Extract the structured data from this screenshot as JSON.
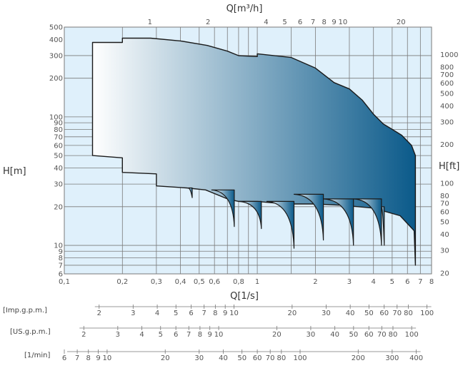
{
  "chart_data": {
    "type": "area",
    "title": "",
    "x_axis": {
      "label": "Q[1/s]",
      "scale": "log",
      "range": [
        0.1,
        8
      ],
      "ticks": [
        {
          "v": 0.1,
          "t": "0,1"
        },
        {
          "v": 0.2,
          "t": "0,2"
        },
        {
          "v": 0.3,
          "t": "0,3"
        },
        {
          "v": 0.4,
          "t": "0,4"
        },
        {
          "v": 0.5,
          "t": "0,5"
        },
        {
          "v": 0.6,
          "t": "0,6"
        },
        {
          "v": 0.8,
          "t": "0,8"
        },
        {
          "v": 1,
          "t": "1"
        },
        {
          "v": 2,
          "t": "2"
        },
        {
          "v": 3,
          "t": "3"
        },
        {
          "v": 4,
          "t": "4"
        },
        {
          "v": 5,
          "t": "5"
        },
        {
          "v": 6,
          "t": "6"
        },
        {
          "v": 7,
          "t": "7"
        },
        {
          "v": 8,
          "t": "8"
        }
      ],
      "gridlines": [
        0.1,
        0.2,
        0.3,
        0.4,
        0.5,
        0.6,
        0.7,
        0.8,
        0.9,
        1,
        1.5,
        2,
        3,
        4,
        5,
        6,
        7,
        8
      ]
    },
    "x_axis_top": {
      "label": "Q[m³/h]",
      "ticks": [
        {
          "v": 1,
          "t": "1"
        },
        {
          "v": 2,
          "t": "2"
        },
        {
          "v": 4,
          "t": "4"
        },
        {
          "v": 5,
          "t": "5"
        },
        {
          "v": 6,
          "t": "6"
        },
        {
          "v": 7,
          "t": "7"
        },
        {
          "v": 8,
          "t": "8"
        },
        {
          "v": 9,
          "t": "9"
        },
        {
          "v": 10,
          "t": "10"
        },
        {
          "v": 20,
          "t": "20"
        }
      ]
    },
    "y_axis": {
      "label": "H[m]",
      "scale": "log",
      "range": [
        6,
        500
      ],
      "ticks": [
        {
          "v": 500,
          "t": "500"
        },
        {
          "v": 400,
          "t": "400"
        },
        {
          "v": 300,
          "t": "300"
        },
        {
          "v": 200,
          "t": "200"
        },
        {
          "v": 100,
          "t": "100"
        },
        {
          "v": 90,
          "t": "90"
        },
        {
          "v": 80,
          "t": "80"
        },
        {
          "v": 70,
          "t": "70"
        },
        {
          "v": 60,
          "t": "60"
        },
        {
          "v": 50,
          "t": "50"
        },
        {
          "v": 40,
          "t": "40"
        },
        {
          "v": 30,
          "t": "30"
        },
        {
          "v": 20,
          "t": "20"
        },
        {
          "v": 10,
          "t": "10"
        },
        {
          "v": 9,
          "t": "9"
        },
        {
          "v": 8,
          "t": "8"
        },
        {
          "v": 7,
          "t": "7"
        },
        {
          "v": 6,
          "t": "6"
        }
      ],
      "gridlines": [
        300,
        200,
        100,
        90,
        80,
        70,
        60,
        50,
        40,
        30,
        20,
        10,
        9,
        8,
        7
      ]
    },
    "y_axis_right": {
      "label": "H[ft]",
      "ticks": [
        {
          "v": 1000,
          "t": "1000"
        },
        {
          "v": 800,
          "t": "800"
        },
        {
          "v": 700,
          "t": "700"
        },
        {
          "v": 600,
          "t": "600"
        },
        {
          "v": 500,
          "t": "500"
        },
        {
          "v": 400,
          "t": "400"
        },
        {
          "v": 300,
          "t": "300"
        },
        {
          "v": 200,
          "t": "200"
        },
        {
          "v": 100,
          "t": "100"
        },
        {
          "v": 80,
          "t": "80"
        },
        {
          "v": 70,
          "t": "70"
        },
        {
          "v": 60,
          "t": "60"
        },
        {
          "v": 50,
          "t": "50"
        },
        {
          "v": 40,
          "t": "40"
        },
        {
          "v": 30,
          "t": "30"
        },
        {
          "v": 20,
          "t": "20"
        }
      ]
    },
    "envelope": {
      "upper": [
        [
          0.14,
          380
        ],
        [
          0.2,
          380
        ],
        [
          0.2,
          410
        ],
        [
          0.28,
          410
        ],
        [
          0.4,
          390
        ],
        [
          0.55,
          360
        ],
        [
          0.7,
          325
        ],
        [
          0.8,
          300
        ],
        [
          1.0,
          295
        ],
        [
          1.0,
          310
        ],
        [
          1.5,
          290
        ],
        [
          2.0,
          240
        ],
        [
          2.5,
          185
        ],
        [
          3.0,
          165
        ],
        [
          3.5,
          135
        ],
        [
          4.0,
          105
        ],
        [
          4.5,
          88
        ],
        [
          5.0,
          80
        ],
        [
          5.6,
          72
        ],
        [
          6.3,
          60
        ],
        [
          6.6,
          50
        ]
      ],
      "right_bottom": 7,
      "lower": [
        [
          0.14,
          50
        ],
        [
          0.2,
          48
        ],
        [
          0.2,
          37
        ],
        [
          0.3,
          36
        ],
        [
          0.3,
          29
        ],
        [
          0.43,
          28
        ],
        [
          0.54,
          27
        ],
        [
          0.7,
          23
        ],
        [
          0.8,
          22
        ],
        [
          1.0,
          22
        ],
        [
          1.4,
          21
        ],
        [
          2.0,
          21
        ],
        [
          2.8,
          20.5
        ],
        [
          4.0,
          19.5
        ],
        [
          5.5,
          17
        ],
        [
          6.5,
          13
        ]
      ],
      "notches": [
        {
          "top": [
            0.44,
            28
          ],
          "bottom": [
            0.46,
            23.5
          ]
        },
        {
          "top": [
            0.58,
            27
          ],
          "bottom": [
            0.76,
            14
          ]
        },
        {
          "top": [
            0.8,
            22
          ],
          "bottom": [
            1.05,
            13.5
          ]
        },
        {
          "top": [
            1.12,
            22
          ],
          "bottom": [
            1.55,
            9.5
          ]
        },
        {
          "top": [
            1.55,
            25
          ],
          "bottom": [
            2.2,
            11
          ]
        },
        {
          "top": [
            2.2,
            23
          ],
          "bottom": [
            3.15,
            10
          ]
        },
        {
          "top": [
            3.15,
            23
          ],
          "bottom": [
            4.4,
            10
          ]
        },
        {
          "top": [
            4.4,
            20
          ],
          "bottom": [
            4.55,
            10
          ]
        }
      ]
    },
    "colors": {
      "background": "#dff0fb",
      "grid": "#7a7a7a",
      "fill_start": "#ffffff",
      "fill_end": "#0b5a8a",
      "outline": "#1a1a1a"
    },
    "secondary_scales": [
      {
        "label": "[Imp.g.p.m.]",
        "ticks": [
          {
            "v": 2,
            "t": "2"
          },
          {
            "v": 3,
            "t": "3"
          },
          {
            "v": 4,
            "t": "4"
          },
          {
            "v": 5,
            "t": "5"
          },
          {
            "v": 6,
            "t": "6"
          },
          {
            "v": 7,
            "t": "7"
          },
          {
            "v": 8,
            "t": "8"
          },
          {
            "v": 9,
            "t": "9"
          },
          {
            "v": 10,
            "t": "10"
          },
          {
            "v": 20,
            "t": "20"
          },
          {
            "v": 30,
            "t": "30"
          },
          {
            "v": 40,
            "t": "40"
          },
          {
            "v": 50,
            "t": "50"
          },
          {
            "v": 60,
            "t": "60"
          },
          {
            "v": 70,
            "t": "70"
          },
          {
            "v": 80,
            "t": "80"
          },
          {
            "v": 100,
            "t": "100"
          }
        ]
      },
      {
        "label": "[US.g.p.m.]",
        "ticks": [
          {
            "v": 2,
            "t": "2"
          },
          {
            "v": 3,
            "t": "3"
          },
          {
            "v": 4,
            "t": "4"
          },
          {
            "v": 5,
            "t": "5"
          },
          {
            "v": 6,
            "t": "6"
          },
          {
            "v": 7,
            "t": "7"
          },
          {
            "v": 8,
            "t": "8"
          },
          {
            "v": 9,
            "t": "9"
          },
          {
            "v": 10,
            "t": "10"
          },
          {
            "v": 20,
            "t": "20"
          },
          {
            "v": 30,
            "t": "30"
          },
          {
            "v": 40,
            "t": "40"
          },
          {
            "v": 50,
            "t": "50"
          },
          {
            "v": 60,
            "t": "60"
          },
          {
            "v": 70,
            "t": "70"
          },
          {
            "v": 80,
            "t": "80"
          },
          {
            "v": 100,
            "t": "100"
          }
        ]
      },
      {
        "label": "[1/min]",
        "ticks": [
          {
            "v": 6,
            "t": "6"
          },
          {
            "v": 7,
            "t": "7"
          },
          {
            "v": 8,
            "t": "8"
          },
          {
            "v": 9,
            "t": "9"
          },
          {
            "v": 10,
            "t": "10"
          },
          {
            "v": 20,
            "t": "20"
          },
          {
            "v": 30,
            "t": "30"
          },
          {
            "v": 40,
            "t": "40"
          },
          {
            "v": 50,
            "t": "50"
          },
          {
            "v": 60,
            "t": "60"
          },
          {
            "v": 70,
            "t": "70"
          },
          {
            "v": 80,
            "t": "80"
          },
          {
            "v": 100,
            "t": "100"
          },
          {
            "v": 200,
            "t": "200"
          },
          {
            "v": 300,
            "t": "300"
          },
          {
            "v": 400,
            "t": "400"
          }
        ]
      }
    ]
  }
}
